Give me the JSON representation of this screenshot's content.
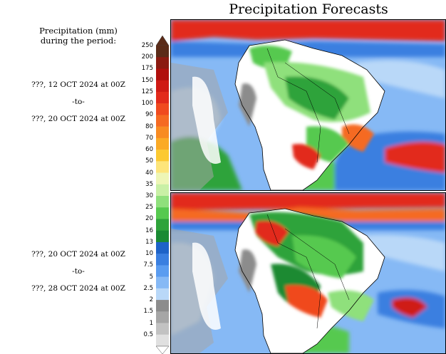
{
  "page": {
    "title": "Precipitation Forecasts"
  },
  "legend": {
    "heading_line1": "Precipitation (mm)",
    "heading_line2": "during the period:",
    "levels": [
      "250",
      "200",
      "175",
      "150",
      "125",
      "100",
      "90",
      "80",
      "70",
      "60",
      "50",
      "40",
      "35",
      "30",
      "25",
      "20",
      "16",
      "13",
      "10",
      "7.5",
      "5",
      "2.5",
      "2",
      "1.5",
      "1",
      "0.5"
    ],
    "colors": {
      "250": "#5b2b18",
      "200": "#8b1a10",
      "175": "#b00f0c",
      "150": "#cf1a14",
      "125": "#e22a1b",
      "100": "#f04a1f",
      "90": "#f56a22",
      "80": "#f88b22",
      "70": "#fbaa26",
      "60": "#fcc931",
      "50": "#fde57a",
      "40": "#eef6b6",
      "35": "#c9f0a6",
      "30": "#8fe07c",
      "25": "#56c94f",
      "20": "#2ea33a",
      "16": "#1a8a33",
      "13": "#1e63c8",
      "10": "#3a7fe0",
      "7.5": "#5a9cf0",
      "5": "#86b9f5",
      "2.5": "#b9d8f8",
      "2": "#8c8c8c",
      "1.5": "#a6a6a6",
      "1": "#c2c2c2",
      "0.5": "#e0e0e0"
    }
  },
  "periods": [
    {
      "start": "???, 12 OCT 2024 at 00Z",
      "separator": "-to-",
      "end": "???, 20 OCT 2024 at 00Z"
    },
    {
      "start": "???, 20 OCT 2024 at 00Z",
      "separator": "-to-",
      "end": "???, 28 OCT 2024 at 00Z"
    }
  ],
  "colors": {
    "land_border": "#000000",
    "ocean_base": "#86b9f5",
    "dry_land": "#ffffff"
  }
}
